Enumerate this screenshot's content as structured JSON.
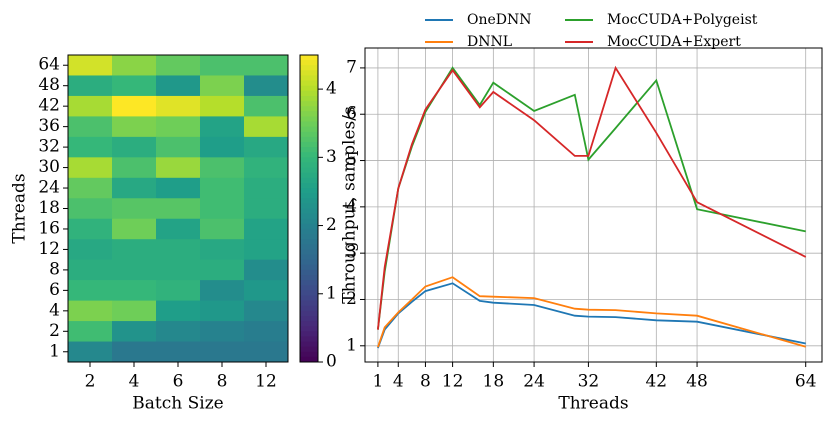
{
  "chart_data": [
    {
      "type": "heatmap",
      "x_label": "Batch Size",
      "y_label": "Threads",
      "x_categories": [
        "2",
        "4",
        "6",
        "8",
        "12"
      ],
      "y_categories": [
        "64",
        "48",
        "42",
        "36",
        "32",
        "30",
        "24",
        "18",
        "16",
        "12",
        "8",
        "6",
        "4",
        "2",
        "1"
      ],
      "values": [
        [
          4.2,
          3.7,
          3.4,
          3.2,
          3.2
        ],
        [
          2.8,
          3.0,
          2.4,
          3.6,
          2.2
        ],
        [
          3.9,
          4.5,
          4.3,
          4.0,
          3.2
        ],
        [
          3.2,
          3.6,
          3.5,
          2.6,
          3.9
        ],
        [
          3.0,
          2.8,
          3.2,
          2.5,
          2.7
        ],
        [
          3.9,
          3.2,
          3.8,
          3.2,
          2.9
        ],
        [
          3.4,
          2.7,
          2.5,
          3.1,
          2.8
        ],
        [
          3.2,
          3.3,
          3.3,
          3.1,
          2.8
        ],
        [
          2.9,
          3.5,
          2.6,
          3.2,
          2.6
        ],
        [
          2.7,
          2.8,
          2.8,
          2.7,
          2.6
        ],
        [
          2.8,
          2.8,
          2.8,
          2.8,
          2.2
        ],
        [
          3.0,
          3.0,
          2.9,
          2.2,
          2.4
        ],
        [
          3.6,
          3.5,
          2.5,
          2.4,
          2.1
        ],
        [
          3.1,
          2.3,
          2.1,
          2.0,
          1.9
        ],
        [
          2.1,
          1.8,
          1.8,
          1.8,
          1.8
        ]
      ],
      "colormap": "viridis",
      "colorbar": {
        "ylim": [
          0,
          4.5
        ],
        "yticks": [
          0,
          1,
          2,
          3,
          4
        ]
      }
    },
    {
      "type": "line",
      "x_label": "Threads",
      "y_label": "Throughput, samples/s",
      "x": [
        1,
        2,
        4,
        6,
        8,
        12,
        16,
        18,
        24,
        30,
        32,
        36,
        42,
        48,
        64
      ],
      "xlim": [
        -0.9,
        66.4
      ],
      "xticks": [
        1,
        4,
        8,
        12,
        18,
        24,
        32,
        42,
        48,
        64
      ],
      "ylim": [
        0.65,
        7.43
      ],
      "yticks": [
        1,
        2,
        3,
        4,
        5,
        6,
        7
      ],
      "grid": true,
      "series": [
        {
          "name": "OneDNN",
          "color": "#1f77b4",
          "values": [
            0.95,
            1.35,
            1.7,
            1.95,
            2.18,
            2.35,
            1.97,
            1.93,
            1.88,
            1.65,
            1.63,
            1.62,
            1.55,
            1.52,
            1.05
          ]
        },
        {
          "name": "DNNL",
          "color": "#ff7f0e",
          "values": [
            0.97,
            1.4,
            1.72,
            2.0,
            2.28,
            2.48,
            2.07,
            2.06,
            2.03,
            1.8,
            1.78,
            1.77,
            1.7,
            1.65,
            0.98
          ]
        },
        {
          "name": "MocCUDA+Polygeist",
          "color": "#2ca02c",
          "values": [
            1.35,
            2.6,
            4.4,
            5.3,
            6.05,
            7.0,
            6.2,
            6.68,
            6.07,
            6.42,
            5.02,
            5.7,
            6.73,
            3.95,
            3.47
          ]
        },
        {
          "name": "MocCUDA+Expert",
          "color": "#d62728",
          "values": [
            1.35,
            2.7,
            4.4,
            5.35,
            6.1,
            6.95,
            6.15,
            6.48,
            5.87,
            5.1,
            5.1,
            7.0,
            5.6,
            4.1,
            2.92
          ]
        }
      ]
    }
  ]
}
